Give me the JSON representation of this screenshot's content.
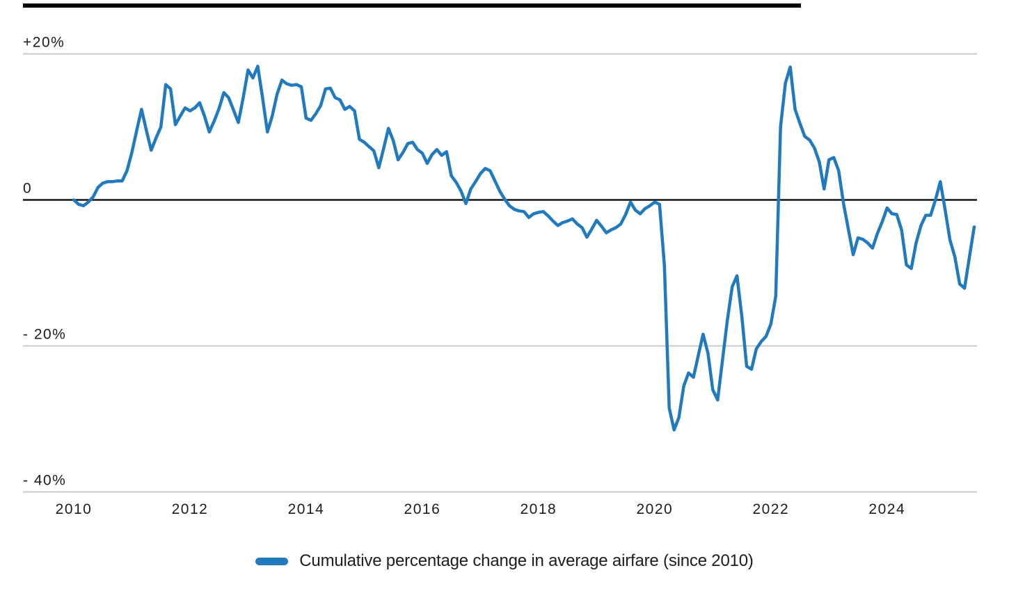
{
  "legend": {
    "label": "Cumulative percentage change in average airfare (since 2010)"
  },
  "colors": {
    "line": "#217abe",
    "grid": "#cbcbcb",
    "zero_axis": "#151515",
    "text": "#1c1c1c",
    "top_rule": "#000000"
  },
  "chart_data": {
    "type": "line",
    "title": "",
    "xlabel": "",
    "ylabel": "",
    "grid": "horizontal gridlines only",
    "legend_position": "bottom center",
    "series_name": "Cumulative percentage change in average airfare (since 2010)",
    "frequency": "monthly",
    "x_range": "Jan 2010 - Jul 2025",
    "ylim": [
      -40,
      20
    ],
    "x_ticks": [
      "2010",
      "2012",
      "2014",
      "2016",
      "2018",
      "2020",
      "2022",
      "2024"
    ],
    "y_ticks": [
      {
        "label": "+20%",
        "value": 20
      },
      {
        "label": "0",
        "value": 0
      },
      {
        "label": "- 20%",
        "value": -20
      },
      {
        "label": "- 40%",
        "value": -40
      }
    ],
    "values_pct": [
      0.0,
      -0.6,
      -0.8,
      -0.3,
      0.4,
      1.7,
      2.3,
      2.5,
      2.5,
      2.6,
      2.6,
      4.0,
      6.5,
      9.5,
      12.4,
      9.5,
      6.8,
      8.5,
      10.0,
      15.8,
      15.2,
      10.3,
      11.5,
      12.6,
      12.2,
      12.6,
      13.3,
      11.5,
      9.3,
      10.8,
      12.5,
      14.7,
      14.0,
      12.3,
      10.6,
      14.0,
      17.8,
      16.7,
      18.3,
      14.0,
      9.3,
      11.5,
      14.5,
      16.4,
      15.9,
      15.7,
      15.8,
      15.5,
      11.2,
      10.9,
      11.8,
      12.9,
      15.2,
      15.3,
      14.0,
      13.7,
      12.4,
      12.8,
      12.2,
      8.3,
      7.9,
      7.3,
      6.7,
      4.4,
      7.0,
      9.8,
      8.1,
      5.5,
      6.5,
      7.7,
      7.9,
      6.9,
      6.4,
      5.0,
      6.2,
      6.9,
      6.1,
      6.6,
      3.3,
      2.4,
      1.2,
      -0.5,
      1.5,
      2.5,
      3.6,
      4.3,
      4.0,
      2.6,
      1.2,
      0.1,
      -0.8,
      -1.3,
      -1.5,
      -1.6,
      -2.4,
      -1.9,
      -1.7,
      -1.6,
      -2.2,
      -2.9,
      -3.5,
      -3.1,
      -2.9,
      -2.6,
      -3.3,
      -3.8,
      -5.1,
      -4.0,
      -2.8,
      -3.6,
      -4.5,
      -4.1,
      -3.8,
      -3.3,
      -2.0,
      -0.3,
      -1.4,
      -1.9,
      -1.2,
      -0.8,
      -0.3,
      -0.6,
      -9.0,
      -28.5,
      -31.5,
      -29.8,
      -25.5,
      -23.7,
      -24.3,
      -21.3,
      -18.4,
      -21.0,
      -26.0,
      -27.4,
      -22.0,
      -16.5,
      -11.9,
      -10.4,
      -16.0,
      -22.8,
      -23.2,
      -20.4,
      -19.4,
      -18.7,
      -17.0,
      -13.2,
      10.0,
      16.0,
      18.2,
      12.4,
      10.5,
      8.7,
      8.2,
      7.1,
      5.2,
      1.5,
      5.5,
      5.8,
      4.0,
      -0.5,
      -4.0,
      -7.5,
      -5.2,
      -5.4,
      -5.9,
      -6.6,
      -4.6,
      -3.0,
      -1.1,
      -1.9,
      -2.0,
      -4.1,
      -8.9,
      -9.4,
      -5.9,
      -3.5,
      -2.1,
      -2.1,
      0.0,
      2.5,
      -1.4,
      -5.5,
      -7.8,
      -11.5,
      -12.1,
      -7.9,
      -3.7
    ]
  }
}
